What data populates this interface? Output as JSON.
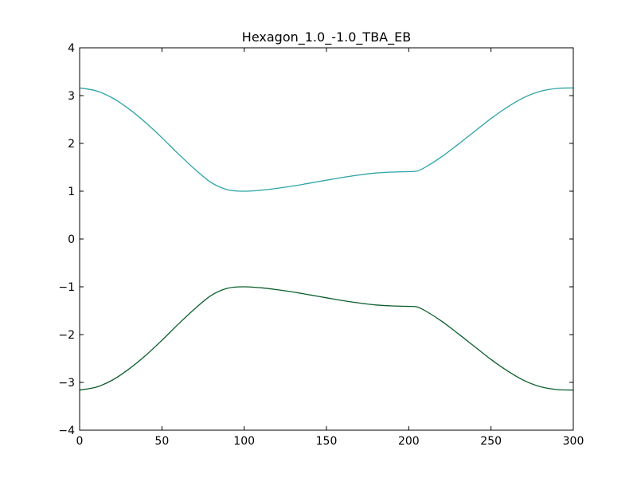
{
  "chart_data": {
    "type": "line",
    "title": "Hexagon_1.0_-1.0_TBA_EB",
    "xlabel": "",
    "ylabel": "",
    "xlim": [
      0,
      300
    ],
    "ylim": [
      -4,
      4
    ],
    "x_ticks": [
      "0",
      "50",
      "100",
      "150",
      "200",
      "250",
      "300"
    ],
    "y_ticks": [
      "−4",
      "−3",
      "−2",
      "−1",
      "0",
      "1",
      "2",
      "3",
      "4"
    ],
    "grid": false,
    "series": [
      {
        "color": "#2ca3a6",
        "x": [
          0,
          10,
          20,
          30,
          40,
          50,
          60,
          70,
          80,
          90,
          100,
          110,
          120,
          130,
          140,
          150,
          160,
          170,
          180,
          190,
          200,
          205,
          210,
          220,
          230,
          240,
          250,
          260,
          270,
          280,
          290,
          300
        ],
        "y": [
          3.16,
          3.1,
          2.95,
          2.72,
          2.44,
          2.12,
          1.78,
          1.46,
          1.18,
          1.03,
          1.0,
          1.02,
          1.06,
          1.11,
          1.17,
          1.23,
          1.29,
          1.34,
          1.38,
          1.4,
          1.41,
          1.42,
          1.5,
          1.72,
          1.98,
          2.25,
          2.52,
          2.76,
          2.96,
          3.09,
          3.15,
          3.16
        ]
      },
      {
        "color": "#0b5e2c",
        "x": [
          0,
          10,
          20,
          30,
          40,
          50,
          60,
          70,
          80,
          90,
          100,
          110,
          120,
          130,
          140,
          150,
          160,
          170,
          180,
          190,
          200,
          205,
          210,
          220,
          230,
          240,
          250,
          260,
          270,
          280,
          290,
          300
        ],
        "y": [
          -3.16,
          -3.1,
          -2.95,
          -2.72,
          -2.44,
          -2.12,
          -1.78,
          -1.46,
          -1.18,
          -1.03,
          -1.0,
          -1.02,
          -1.06,
          -1.11,
          -1.17,
          -1.23,
          -1.29,
          -1.34,
          -1.38,
          -1.4,
          -1.41,
          -1.42,
          -1.5,
          -1.72,
          -1.98,
          -2.25,
          -2.52,
          -2.76,
          -2.96,
          -3.09,
          -3.15,
          -3.16
        ]
      }
    ]
  }
}
